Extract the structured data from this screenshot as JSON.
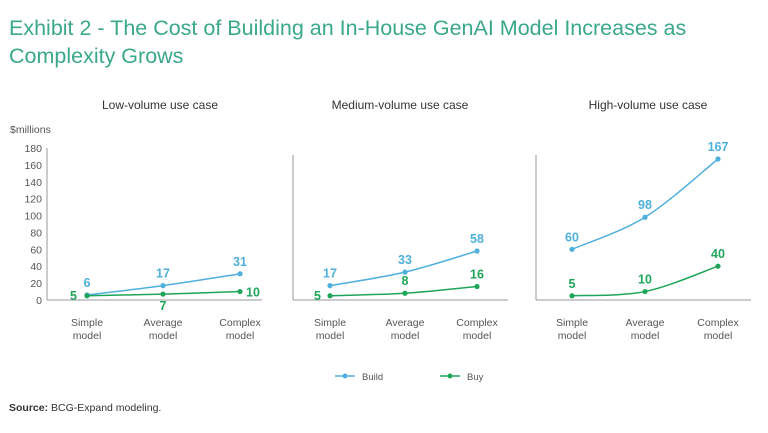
{
  "title": "Exhibit 2 - The Cost of Building an In-House GenAI Model Increases as Complexity Grows",
  "source_label": "Source:",
  "source_text": "BCG-Expand modeling.",
  "colors": {
    "build": "#4fb0dc",
    "buy": "#1fa55a",
    "title": "#3aa889",
    "axis": "#999999"
  },
  "chart_data": [
    {
      "type": "line",
      "title": "Low-volume use case",
      "ylabel": "$millions",
      "ylim": [
        0,
        180
      ],
      "yticks": [
        0,
        20,
        40,
        60,
        80,
        100,
        120,
        140,
        160,
        180
      ],
      "categories": [
        "Simple model",
        "Average model",
        "Complex model"
      ],
      "series": [
        {
          "name": "Build",
          "values": [
            6,
            17,
            31
          ]
        },
        {
          "name": "Buy",
          "values": [
            5,
            7,
            10
          ]
        }
      ]
    },
    {
      "type": "line",
      "title": "Medium-volume use case",
      "ylim": [
        0,
        180
      ],
      "categories": [
        "Simple model",
        "Average model",
        "Complex model"
      ],
      "series": [
        {
          "name": "Build",
          "values": [
            17,
            33,
            58
          ]
        },
        {
          "name": "Buy",
          "values": [
            5,
            8,
            16
          ]
        }
      ]
    },
    {
      "type": "line",
      "title": "High-volume use case",
      "ylim": [
        0,
        180
      ],
      "categories": [
        "Simple model",
        "Average model",
        "Complex model"
      ],
      "series": [
        {
          "name": "Build",
          "values": [
            60,
            98,
            167
          ]
        },
        {
          "name": "Buy",
          "values": [
            5,
            10,
            40
          ]
        }
      ]
    }
  ],
  "legend": [
    {
      "label": "Build"
    },
    {
      "label": "Buy"
    }
  ]
}
